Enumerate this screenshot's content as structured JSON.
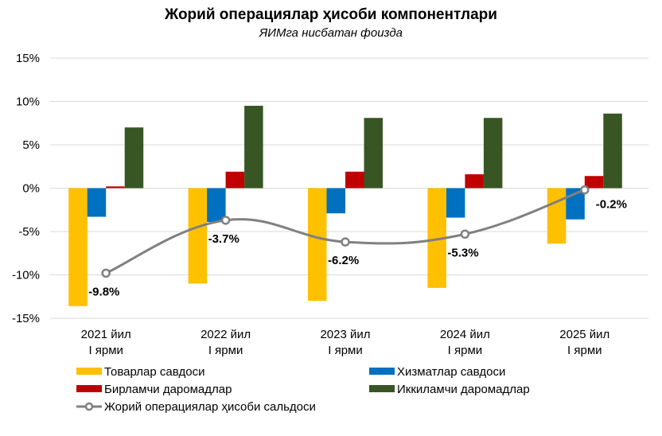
{
  "chart_data": {
    "type": "bar",
    "title": "Жорий операциялар ҳисоби компонентлари",
    "subtitle": "ЯИМга нисбатан фоизда",
    "xlabel": "",
    "ylabel": "",
    "ylim": [
      -15,
      15
    ],
    "yticks": [
      15,
      10,
      5,
      0,
      -5,
      -10,
      -15
    ],
    "ytick_labels": [
      "15%",
      "10%",
      "5%",
      "0%",
      "-5%",
      "-10%",
      "-15%"
    ],
    "grid": true,
    "legend_position": "bottom",
    "categories": [
      [
        "2021 йил",
        "I ярми"
      ],
      [
        "2022 йил",
        "I ярми"
      ],
      [
        "2023 йил",
        "I ярми"
      ],
      [
        "2024 йил",
        "I ярми"
      ],
      [
        "2025 йил",
        "I ярми"
      ]
    ],
    "series": [
      {
        "name": "Товарлар савдоси",
        "kind": "bar",
        "color": "#FFC000",
        "values": [
          -13.6,
          -11.0,
          -13.0,
          -11.5,
          -6.4
        ]
      },
      {
        "name": "Хизматлар савдоси",
        "kind": "bar",
        "color": "#0070C0",
        "values": [
          -3.3,
          -3.9,
          -2.9,
          -3.4,
          -3.6
        ]
      },
      {
        "name": "Бирламчи даромадлар",
        "kind": "bar",
        "color": "#C00000",
        "values": [
          0.2,
          1.9,
          1.9,
          1.6,
          1.4
        ]
      },
      {
        "name": "Иккиламчи даромадлар",
        "kind": "bar",
        "color": "#375623",
        "values": [
          7.0,
          9.5,
          8.1,
          8.1,
          8.6
        ]
      },
      {
        "name": "Жорий операциялар ҳисоби сальдоси",
        "kind": "line",
        "color": "#808080",
        "values": [
          -9.8,
          -3.7,
          -6.2,
          -5.3,
          -0.2
        ],
        "data_labels": [
          "-9.8%",
          "-3.7%",
          "-6.2%",
          "-5.3%",
          "-0.2%"
        ]
      }
    ],
    "legend_order": [
      0,
      1,
      2,
      3,
      4
    ]
  }
}
